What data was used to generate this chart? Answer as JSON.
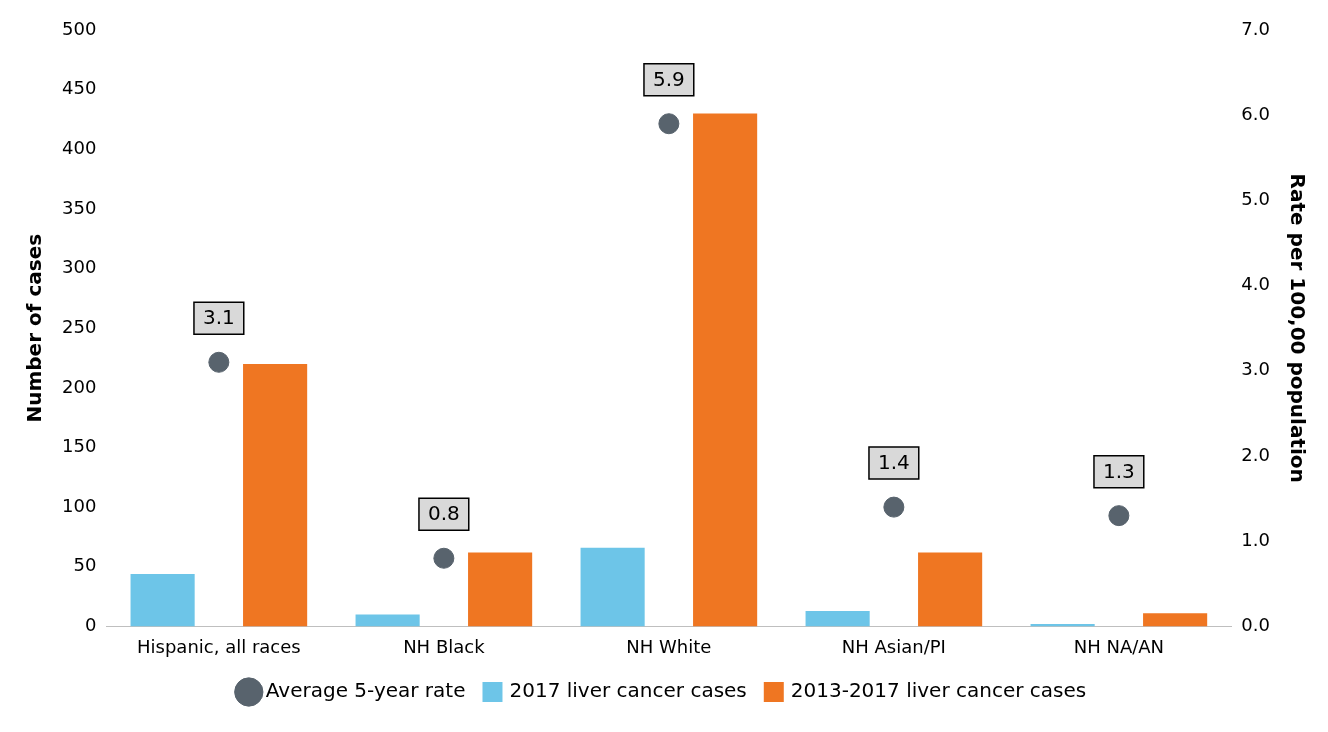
{
  "chart_data": {
    "type": "bar",
    "categories": [
      "Hispanic, all races",
      "NH Black",
      "NH White",
      "NH Asian/PI",
      "NH NA/AN"
    ],
    "ylabel": "Number of cases",
    "y2label": "Rate per 100,00 population",
    "ylim": [
      0,
      500
    ],
    "yticks": [
      0,
      50,
      100,
      150,
      200,
      250,
      300,
      350,
      400,
      450,
      500
    ],
    "y2lim": [
      0,
      7
    ],
    "y2ticks": [
      {
        "value": 0,
        "label": "0.0"
      },
      {
        "value": 1,
        "label": "1.0"
      },
      {
        "value": 2,
        "label": "2.0"
      },
      {
        "value": 3,
        "label": "3.0"
      },
      {
        "value": 4,
        "label": "4.0"
      },
      {
        "value": 5,
        "label": "5.0"
      },
      {
        "value": 6,
        "label": "6.0"
      },
      {
        "value": 7,
        "label": "7.0"
      }
    ],
    "grid": false,
    "legend": "bottom",
    "series": [
      {
        "name": "2017 liver cancer cases",
        "color": "#6dc5e8",
        "values": [
          44,
          10,
          66,
          13,
          2
        ]
      },
      {
        "name": "2013-2017 liver cancer cases",
        "color": "#ef7622",
        "values": [
          220,
          62,
          430,
          62,
          11
        ]
      },
      {
        "name": "Average 5-year rate",
        "type": "scatter",
        "axis": "y2",
        "color": "#58636d",
        "marker": "circle",
        "x": [
          "Hispanic, all races",
          "NH Black",
          "NH White",
          "NH Asian/PI",
          "NH NA/AN"
        ],
        "values": [
          3.1,
          0.8,
          5.9,
          1.4,
          1.3
        ],
        "value_labels": [
          "3.1",
          "0.8",
          "5.9",
          "1.4",
          "1.3"
        ]
      }
    ]
  }
}
